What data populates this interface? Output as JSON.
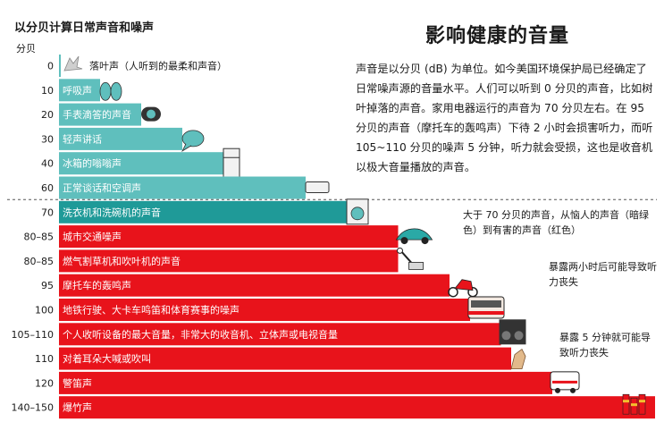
{
  "chart_data": {
    "type": "bar",
    "orientation": "horizontal",
    "title": "以分贝计算日常声音和噪声",
    "ylabel": "分贝",
    "categories": [
      "0",
      "10",
      "20",
      "30",
      "40",
      "60",
      "70",
      "80–85",
      "80–85",
      "95",
      "100",
      "105–110",
      "110",
      "120",
      "140–150"
    ],
    "labels": [
      "落叶声（人听到的最柔和声音）",
      "呼吸声",
      "手表滴答的声音",
      "轻声讲话",
      "冰箱的嗡嗡声",
      "正常谈话和空调声",
      "洗衣机和洗碗机的声音",
      "城市交通噪声",
      "燃气割草机和吹叶机的声音",
      "摩托车的轰鸣声",
      "地铁行驶、大卡车鸣笛和体育赛事的噪声",
      "个人收听设备的最大音量，非常大的收音机、立体声或电视音量",
      "对着耳朵大喊或吹叫",
      "警笛声",
      "爆竹声"
    ],
    "values": [
      0,
      10,
      20,
      30,
      40,
      60,
      70,
      82.5,
      82.5,
      95,
      100,
      107.5,
      110,
      120,
      145
    ],
    "status": [
      "safe",
      "safe",
      "safe",
      "safe",
      "safe",
      "safe",
      "safe",
      "harmful",
      "harmful",
      "harmful",
      "harmful",
      "harmful",
      "harmful",
      "harmful",
      "harmful"
    ],
    "colors": {
      "safe": "#5fbfbd",
      "harmful": "#e8131b"
    },
    "threshold_db": 70,
    "legend": "none"
  },
  "main_title": "影响健康的音量",
  "description": "声音是以分贝 (dB) 为单位。如今美国环境保护局已经确定了日常噪声源的音量水平。人们可以听到 0 分贝的声音，比如树叶掉落的声音。家用电器运行的声音为 70 分贝左右。在 95 分贝的声音（摩托车的轰鸣声）下待 2 小时会损害听力，而听 105~110 分贝的噪声 5 分钟，听力就会受损，这也是收音机以极大音量播放的声音。",
  "notes": {
    "threshold": "大于 70 分贝的声音，从恼人的声音（暗绿色）到有害的声音（红色）",
    "two_hours": "暴露两小时后可能导致听力丧失",
    "five_minutes": "暴露 5 分钟就可能导致听力丧失"
  },
  "icons": [
    "leaf-icon",
    "lungs-icon",
    "watch-icon",
    "speech-bubble-icon",
    "refrigerator-icon",
    "air-conditioner-icon",
    "washing-machine-icon",
    "car-icon",
    "lawn-mower-icon",
    "motorcycle-icon",
    "bus-icon",
    "speaker-icon",
    "dog-icon",
    "ambulance-icon",
    "firecracker-icon"
  ]
}
